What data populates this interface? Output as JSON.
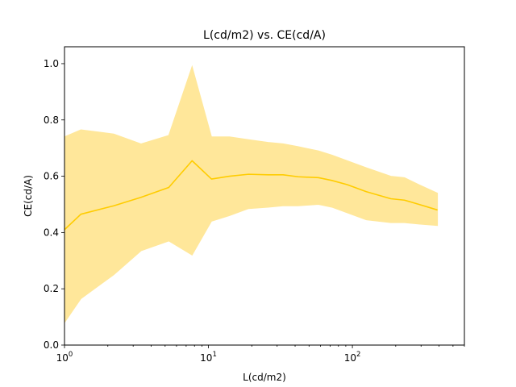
{
  "chart_data": {
    "type": "line",
    "title": "L(cd/m2) vs. CE(cd/A)",
    "xlabel": "L(cd/m2)",
    "ylabel": "CE(cd/A)",
    "xscale": "log",
    "xlim": [
      1,
      600
    ],
    "ylim": [
      0,
      1.06
    ],
    "grid": false,
    "legend": "none",
    "colors": {
      "line": "#ffcc00",
      "band": "#ffe79a"
    },
    "x_ticks": [
      {
        "value": 1,
        "base": "10",
        "exp": "0"
      },
      {
        "value": 10,
        "base": "10",
        "exp": "1"
      },
      {
        "value": 100,
        "base": "10",
        "exp": "2"
      }
    ],
    "x_minor_ticks": [
      2,
      3,
      4,
      5,
      6,
      7,
      8,
      9,
      20,
      30,
      40,
      50,
      60,
      70,
      80,
      90,
      200,
      300,
      400,
      500,
      600
    ],
    "y_ticks": [
      "0.0",
      "0.2",
      "0.4",
      "0.6",
      "0.8",
      "1.0"
    ],
    "x": [
      1.0,
      1.3,
      2.2,
      3.4,
      5.3,
      7.7,
      10.5,
      14.0,
      19.0,
      26.0,
      33.0,
      42.0,
      58.0,
      72.0,
      92.0,
      125.0,
      185.0,
      230.0,
      290.0,
      390.0
    ],
    "series": [
      {
        "values": [
          0.41,
          0.465,
          0.495,
          0.525,
          0.56,
          0.655,
          0.59,
          0.6,
          0.607,
          0.605,
          0.605,
          0.598,
          0.595,
          0.585,
          0.57,
          0.545,
          0.52,
          0.515,
          0.5,
          0.48
        ],
        "lower": [
          0.08,
          0.165,
          0.25,
          0.335,
          0.37,
          0.32,
          0.44,
          0.46,
          0.485,
          0.49,
          0.495,
          0.495,
          0.5,
          0.49,
          0.47,
          0.445,
          0.435,
          0.435,
          0.43,
          0.425
        ],
        "upper": [
          0.74,
          0.765,
          0.75,
          0.715,
          0.745,
          0.99,
          0.74,
          0.74,
          0.73,
          0.72,
          0.715,
          0.705,
          0.69,
          0.675,
          0.655,
          0.63,
          0.6,
          0.595,
          0.57,
          0.54
        ]
      }
    ]
  }
}
